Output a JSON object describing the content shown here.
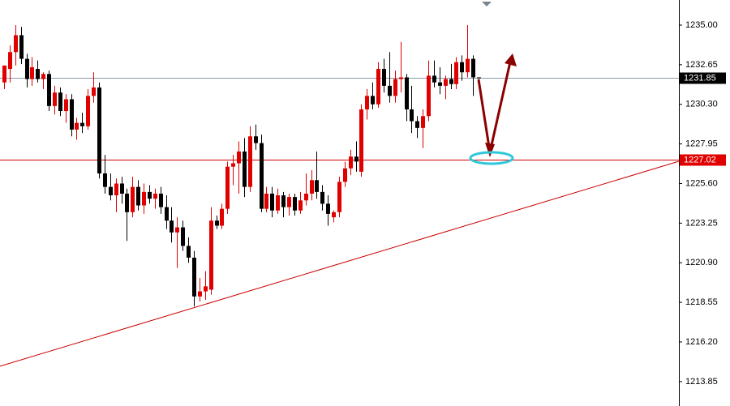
{
  "chart_data": {
    "type": "candlestick",
    "up_color": "#e00000",
    "down_color": "#000000",
    "ylim": [
      1212.4,
      1236.49
    ],
    "yticks": [
      {
        "value": 1235.0,
        "label": "1235.00"
      },
      {
        "value": 1232.65,
        "label": "1232.65"
      },
      {
        "value": 1230.3,
        "label": "1230.30"
      },
      {
        "value": 1227.95,
        "label": "1227.95"
      },
      {
        "value": 1225.6,
        "label": "1225.60"
      },
      {
        "value": 1223.25,
        "label": "1223.25"
      },
      {
        "value": 1220.9,
        "label": "1220.90"
      },
      {
        "value": 1218.55,
        "label": "1218.55"
      },
      {
        "value": 1216.2,
        "label": "1216.20"
      },
      {
        "value": 1213.85,
        "label": "1213.85"
      }
    ],
    "price_lines": [
      {
        "value": 1231.85,
        "color": "#8c9aa8",
        "label_bg": "#000000"
      },
      {
        "value": 1227.02,
        "color": "#cc0000",
        "label_bg": "#e00000"
      }
    ],
    "trendline": {
      "start": 1214.76,
      "end": 1226.92,
      "color": "#cc0000"
    },
    "open": [
      1231.6,
      1232.4,
      1233.4,
      1234.4,
      1233.0,
      1231.8,
      1232.4,
      1231.8,
      1232.1,
      1230.2,
      1231.0,
      1229.9,
      1230.6,
      1228.8,
      1229.2,
      1229.0,
      1230.8,
      1231.3,
      1226.2,
      1225.4,
      1224.9,
      1225.6,
      1225.0,
      1223.9,
      1225.4,
      1224.3,
      1225.1,
      1224.7,
      1225.0,
      1224.2,
      1223.4,
      1222.7,
      1223.0,
      1221.9,
      1221.2,
      1218.9,
      1219.2,
      1219.3,
      1223.4,
      1223.1,
      1224.1,
      1226.6,
      1226.8,
      1227.5,
      1225.4,
      1228.4,
      1228.0,
      1224.1,
      1225.0,
      1224.0,
      1224.9,
      1224.2,
      1224.8,
      1224.0,
      1224.6,
      1225.0,
      1225.8,
      1225.1,
      1224.4,
      1223.6,
      1223.9,
      1225.7,
      1226.5,
      1227.2,
      1226.3,
      1230.0,
      1230.8,
      1230.3,
      1232.4,
      1231.4,
      1230.8,
      1231.8,
      1231.9,
      1230.0,
      1229.3,
      1228.9,
      1229.6,
      1232.0,
      1231.6,
      1231.4,
      1231.8,
      1231.5,
      1232.8,
      1232.2,
      1233.0,
      1231.9
    ],
    "high": [
      1232.6,
      1233.8,
      1235.0,
      1234.9,
      1233.3,
      1233.1,
      1232.9,
      1232.2,
      1232.3,
      1231.4,
      1231.3,
      1230.9,
      1230.9,
      1229.5,
      1229.8,
      1231.2,
      1232.2,
      1231.6,
      1227.3,
      1226.2,
      1225.9,
      1226.0,
      1225.3,
      1226.0,
      1225.8,
      1225.6,
      1225.5,
      1225.3,
      1225.4,
      1224.9,
      1224.2,
      1223.6,
      1223.4,
      1222.4,
      1221.6,
      1220.0,
      1220.4,
      1224.2,
      1223.7,
      1224.4,
      1226.9,
      1227.3,
      1228.1,
      1228.3,
      1229.0,
      1229.1,
      1228.5,
      1225.4,
      1225.4,
      1225.3,
      1225.1,
      1225.0,
      1225.0,
      1225.1,
      1226.2,
      1226.4,
      1227.5,
      1225.5,
      1224.9,
      1224.0,
      1226.0,
      1226.9,
      1227.6,
      1228.1,
      1230.3,
      1231.2,
      1231.6,
      1232.8,
      1233.0,
      1233.4,
      1232.3,
      1234.0,
      1232.1,
      1231.4,
      1229.6,
      1230.0,
      1232.9,
      1232.9,
      1232.5,
      1232.0,
      1232.7,
      1233.1,
      1233.2,
      1235.0,
      1233.2,
      1231.9
    ],
    "low": [
      1231.2,
      1231.6,
      1232.6,
      1232.7,
      1231.3,
      1231.4,
      1231.6,
      1231.2,
      1229.9,
      1229.7,
      1229.6,
      1229.2,
      1228.4,
      1228.2,
      1228.6,
      1228.8,
      1230.4,
      1225.9,
      1225.0,
      1224.6,
      1223.9,
      1224.4,
      1222.2,
      1223.6,
      1224.0,
      1223.8,
      1224.4,
      1224.1,
      1223.8,
      1222.9,
      1222.1,
      1220.6,
      1221.6,
      1220.9,
      1218.3,
      1218.6,
      1218.7,
      1219.0,
      1222.9,
      1222.9,
      1223.8,
      1225.5,
      1225.0,
      1224.8,
      1225.1,
      1227.6,
      1223.9,
      1223.9,
      1223.6,
      1223.8,
      1223.6,
      1223.7,
      1223.7,
      1223.8,
      1224.3,
      1224.6,
      1224.7,
      1224.0,
      1223.1,
      1223.3,
      1223.6,
      1225.4,
      1226.1,
      1226.3,
      1226.0,
      1229.4,
      1230.0,
      1230.1,
      1231.0,
      1230.4,
      1230.4,
      1231.0,
      1229.3,
      1228.6,
      1228.3,
      1227.7,
      1229.3,
      1231.3,
      1230.9,
      1230.6,
      1231.2,
      1231.2,
      1231.7,
      1231.9,
      1230.8,
      1231.8
    ],
    "close": [
      1232.6,
      1233.4,
      1234.4,
      1233.0,
      1231.8,
      1232.5,
      1231.8,
      1232.1,
      1230.2,
      1231.0,
      1229.9,
      1230.6,
      1228.8,
      1229.2,
      1229.0,
      1230.8,
      1231.3,
      1226.2,
      1225.4,
      1224.9,
      1225.6,
      1225.0,
      1223.9,
      1225.4,
      1224.3,
      1225.1,
      1224.7,
      1225.0,
      1224.2,
      1223.4,
      1222.7,
      1223.0,
      1221.9,
      1221.2,
      1218.9,
      1219.2,
      1219.5,
      1223.4,
      1223.1,
      1224.1,
      1226.6,
      1226.8,
      1227.5,
      1225.4,
      1228.4,
      1228.0,
      1224.1,
      1225.0,
      1224.0,
      1224.9,
      1224.2,
      1224.8,
      1224.0,
      1224.6,
      1225.0,
      1225.8,
      1225.1,
      1224.4,
      1223.8,
      1223.9,
      1225.7,
      1226.5,
      1227.2,
      1226.9,
      1230.0,
      1230.8,
      1230.3,
      1232.4,
      1231.4,
      1230.8,
      1231.8,
      1231.9,
      1230.0,
      1229.3,
      1228.9,
      1229.6,
      1232.0,
      1231.6,
      1231.4,
      1231.8,
      1231.5,
      1232.8,
      1232.2,
      1233.0,
      1231.9,
      1231.85
    ]
  }
}
